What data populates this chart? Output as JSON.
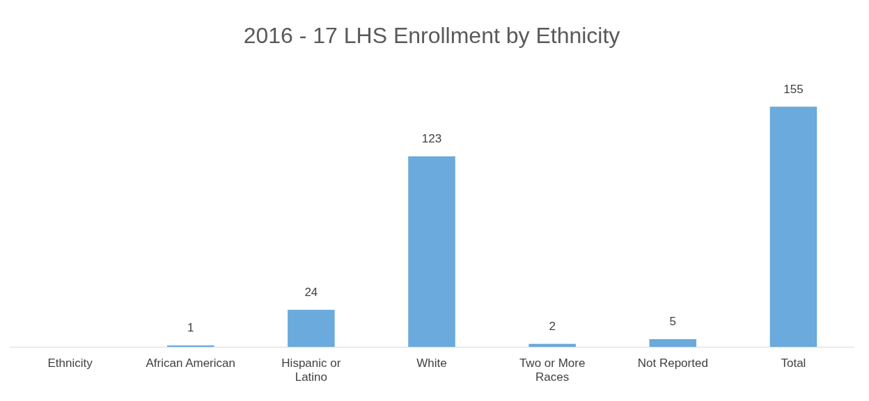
{
  "chart_data": {
    "type": "bar",
    "title": "2016 - 17 LHS Enrollment by Ethnicity",
    "categories": [
      "Ethnicity",
      "African American",
      "Hispanic or Latino",
      "White",
      "Two or More Races",
      "Not Reported",
      "Total"
    ],
    "values": [
      null,
      1,
      24,
      123,
      2,
      5,
      155
    ],
    "color": "#6aaadc",
    "data_labels": true,
    "grid": false,
    "legend": false
  }
}
